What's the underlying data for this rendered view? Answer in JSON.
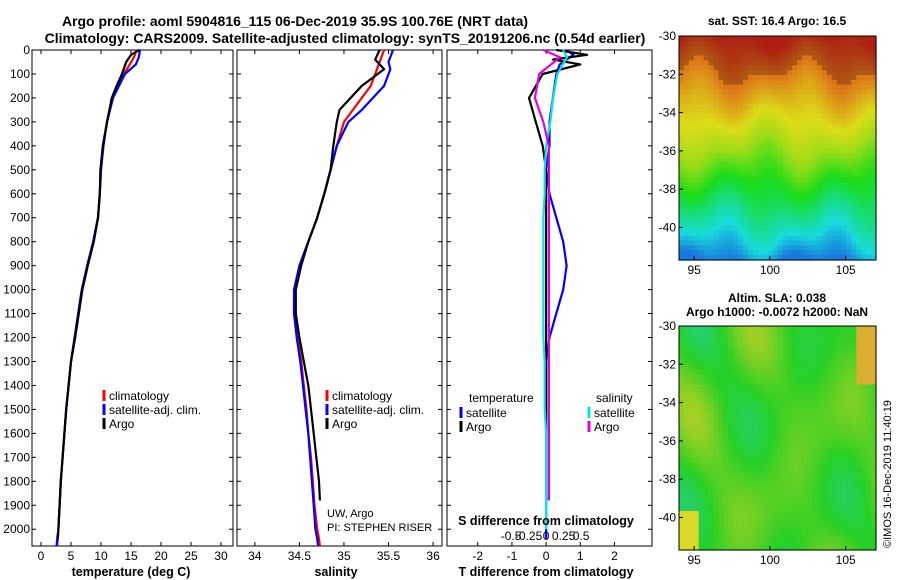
{
  "title_line1": "Argo profile: aoml 5904816_115 06-Dec-2019 35.9S 100.76E (NRT data)",
  "title_line2": "Climatology: CARS2009. Satellite-adjusted climatology: synTS_20191206.nc (0.54d earlier)",
  "colors": {
    "climatology": "#ff0000",
    "satellite": "#0000ff",
    "argo": "#000000",
    "sal_sat": "#00e5e5",
    "sal_argo": "#e000e0"
  },
  "chart_data": [
    {
      "type": "line",
      "id": "temperature",
      "xlabel": "temperature (deg C)",
      "xlim": [
        -1.5,
        32
      ],
      "ylim": [
        2070,
        0
      ],
      "xticks": [
        0,
        5,
        10,
        15,
        20,
        25,
        30
      ],
      "yticks": [
        0,
        100,
        200,
        300,
        400,
        500,
        600,
        700,
        800,
        900,
        1000,
        1100,
        1200,
        1300,
        1400,
        1500,
        1600,
        1700,
        1800,
        1900,
        2000
      ],
      "legend": [
        "climatology",
        "satellite-adj. clim.",
        "Argo"
      ],
      "series": [
        {
          "name": "climatology",
          "color": "#ff0000",
          "x": [
            15.9,
            15.5,
            14.8,
            13.8,
            12.9,
            12.0,
            11.0,
            10.4,
            10.0,
            9.8,
            9.5,
            8.7,
            7.7,
            6.8,
            6.2,
            5.6,
            5.0,
            4.6,
            4.2,
            3.9,
            3.6,
            3.3,
            3.1,
            2.9,
            2.8,
            2.7
          ],
          "y": [
            0,
            30,
            60,
            100,
            150,
            200,
            300,
            400,
            500,
            600,
            700,
            800,
            900,
            1000,
            1100,
            1200,
            1300,
            1400,
            1500,
            1600,
            1700,
            1800,
            1900,
            2000,
            2040,
            2070
          ]
        },
        {
          "name": "satellite-adj. clim.",
          "color": "#0000ff",
          "x": [
            16.5,
            16.3,
            15.8,
            14.0,
            13.0,
            12.0,
            11.0,
            10.4,
            10.0,
            9.8,
            9.5,
            8.7,
            7.7,
            6.8,
            6.2,
            5.6,
            5.0,
            4.6,
            4.2,
            3.9,
            3.6,
            3.3,
            3.1,
            2.9,
            2.7,
            2.6
          ],
          "y": [
            0,
            30,
            60,
            100,
            150,
            200,
            300,
            400,
            500,
            600,
            700,
            800,
            900,
            1000,
            1100,
            1200,
            1300,
            1400,
            1500,
            1600,
            1700,
            1800,
            1900,
            2000,
            2040,
            2070
          ]
        },
        {
          "name": "Argo",
          "color": "#000000",
          "x": [
            16.4,
            15.0,
            14.2,
            13.5,
            12.6,
            11.8,
            11.0,
            10.3,
            9.9,
            9.8,
            9.5,
            8.8,
            7.8,
            6.9,
            6.3,
            5.7,
            5.0,
            4.6,
            4.2,
            3.9,
            3.6,
            3.3,
            3.1,
            2.9,
            2.8
          ],
          "y": [
            0,
            20,
            50,
            100,
            150,
            200,
            300,
            400,
            500,
            600,
            700,
            800,
            900,
            1000,
            1100,
            1200,
            1300,
            1400,
            1500,
            1600,
            1700,
            1800,
            1900,
            2000,
            2040
          ]
        }
      ]
    },
    {
      "type": "line",
      "id": "salinity",
      "xlabel": "salinity",
      "xlim": [
        33.8,
        36.1
      ],
      "ylim": [
        2070,
        0
      ],
      "xticks": [
        34,
        34.5,
        35,
        35.5,
        36
      ],
      "xticklabels": [
        "34",
        "34.5",
        "35",
        "35.5",
        "36"
      ],
      "legend": [
        "climatology",
        "satellite-adj. clim.",
        "Argo"
      ],
      "annotation": [
        "UW, Argo",
        "PI: STEPHEN RISER"
      ],
      "series": [
        {
          "name": "climatology",
          "color": "#ff0000",
          "x": [
            35.45,
            35.4,
            35.35,
            35.3,
            35.1,
            35.0,
            34.92,
            34.85,
            34.78,
            34.7,
            34.6,
            34.5,
            34.45,
            34.45,
            34.48,
            34.52,
            34.55,
            34.58,
            34.6,
            34.63,
            34.65,
            34.67,
            34.7,
            34.72,
            34.73
          ],
          "y": [
            0,
            50,
            100,
            150,
            250,
            300,
            400,
            500,
            600,
            700,
            800,
            900,
            1000,
            1100,
            1200,
            1300,
            1400,
            1500,
            1600,
            1700,
            1800,
            1900,
            2000,
            2040,
            2070
          ]
        },
        {
          "name": "satellite-adj. clim.",
          "color": "#0000ff",
          "x": [
            35.55,
            35.5,
            35.52,
            35.45,
            35.2,
            35.05,
            34.92,
            34.85,
            34.78,
            34.7,
            34.6,
            34.5,
            34.44,
            34.44,
            34.47,
            34.51,
            34.54,
            34.57,
            34.6,
            34.62,
            34.64,
            34.66,
            34.68,
            34.7,
            34.71
          ],
          "y": [
            0,
            50,
            80,
            150,
            250,
            300,
            400,
            500,
            600,
            700,
            800,
            900,
            1000,
            1100,
            1200,
            1300,
            1400,
            1500,
            1600,
            1700,
            1800,
            1900,
            2000,
            2040,
            2070
          ]
        },
        {
          "name": "Argo",
          "color": "#000000",
          "x": [
            35.4,
            35.35,
            35.45,
            35.2,
            34.95,
            34.92,
            34.88,
            34.85,
            34.78,
            34.7,
            34.6,
            34.52,
            34.46,
            34.46,
            34.5,
            34.55,
            34.6,
            34.63,
            34.66,
            34.69,
            34.72,
            34.73
          ],
          "y": [
            0,
            40,
            80,
            150,
            250,
            300,
            400,
            500,
            600,
            700,
            800,
            900,
            1000,
            1100,
            1200,
            1300,
            1400,
            1500,
            1600,
            1700,
            1800,
            1880
          ]
        }
      ]
    },
    {
      "type": "line",
      "id": "difference",
      "xlabel": "T difference from climatology",
      "xlabel_top": "S difference from climatology",
      "xlim": [
        -2.9,
        3.1
      ],
      "ylim": [
        2070,
        0
      ],
      "xticks": [
        -2,
        -1,
        0,
        1,
        2
      ],
      "xticks_s": [
        -0.5,
        -0.25,
        0,
        0.25,
        0.5
      ],
      "xticklabels_s": [
        "-0.5",
        "-0.25",
        "0",
        "0.25",
        "0.5"
      ],
      "legend_t": {
        "title": "temperature",
        "items": [
          "satellite",
          "Argo"
        ]
      },
      "legend_s": {
        "title": "salinity",
        "items": [
          "satellite",
          "Argo"
        ]
      },
      "series": [
        {
          "name": "T satellite",
          "color": "#0000ff",
          "x": [
            0.6,
            0.8,
            0.4,
            0.3,
            0.2,
            0.1,
            0.1,
            0.0,
            0.1,
            0.3,
            0.5,
            0.6,
            0.5,
            0.3,
            0.1,
            0.0,
            0.0,
            0.0,
            0.0,
            0.0,
            0.0,
            0.0,
            0.0,
            0.0,
            0.0
          ],
          "y": [
            0,
            20,
            60,
            100,
            200,
            300,
            400,
            500,
            600,
            700,
            800,
            900,
            1000,
            1100,
            1200,
            1300,
            1400,
            1500,
            1600,
            1700,
            1800,
            1900,
            1950,
            2000,
            2040
          ]
        },
        {
          "name": "T Argo",
          "color": "#000000",
          "x": [
            0.3,
            1.2,
            0.2,
            1.0,
            -0.1,
            -0.5,
            -0.3,
            -0.1,
            0.0,
            0.0,
            0.0,
            0.0,
            0.0,
            0.0,
            0.0,
            0.0,
            0.0,
            0.0,
            0.0,
            0.0,
            0.0,
            0.0
          ],
          "y": [
            0,
            20,
            40,
            60,
            100,
            200,
            300,
            400,
            500,
            600,
            700,
            800,
            1000,
            1100,
            1200,
            1300,
            1400,
            1500,
            1600,
            1700,
            1800,
            1880
          ]
        },
        {
          "name": "S satellite",
          "color": "#00e5e5",
          "x": [
            0.12,
            0.15,
            0.08,
            0.05,
            0.03,
            0.0,
            -0.01,
            -0.01,
            -0.02,
            -0.02,
            -0.02,
            -0.02,
            -0.02,
            -0.02,
            -0.01,
            -0.01,
            -0.01,
            0.0,
            0.0,
            0.0,
            0.0
          ],
          "y": [
            0,
            30,
            100,
            200,
            300,
            400,
            500,
            600,
            700,
            800,
            900,
            1000,
            1100,
            1200,
            1300,
            1400,
            1500,
            1600,
            1800,
            1900,
            2000
          ]
        },
        {
          "name": "S Argo",
          "color": "#e000e0",
          "x": [
            -0.02,
            0.1,
            -0.05,
            -0.08,
            -0.02,
            0.02,
            0.02,
            0.02,
            0.02,
            0.02,
            0.02,
            0.02,
            0.02,
            0.02,
            0.02,
            0.02,
            0.02,
            0.02,
            0.02,
            0.02,
            0.02
          ],
          "y": [
            0,
            30,
            100,
            200,
            300,
            400,
            500,
            600,
            700,
            800,
            900,
            1000,
            1100,
            1200,
            1300,
            1400,
            1500,
            1600,
            1700,
            1800,
            1880
          ]
        }
      ]
    },
    {
      "type": "heatmap",
      "id": "sst_map",
      "title": "sat. SST: 16.4 Argo: 16.5",
      "xticks": [
        95,
        100,
        105
      ],
      "yticks": [
        -30,
        -32,
        -34,
        -36,
        -38,
        -40
      ],
      "xlim": [
        94,
        107
      ],
      "ylim": [
        -41.7,
        -30
      ]
    },
    {
      "type": "heatmap",
      "id": "sla_map",
      "title_line1": "Altim. SLA: 0.038",
      "title_line2": "Argo h1000: -0.0072 h2000: NaN",
      "xticks": [
        95,
        100,
        105
      ],
      "yticks": [
        -30,
        -32,
        -34,
        -36,
        -38,
        -40
      ],
      "xlim": [
        94,
        107
      ],
      "ylim": [
        -41.7,
        -30
      ]
    }
  ],
  "credit": "©IMOS 16-Dec-2019 11:40:19"
}
